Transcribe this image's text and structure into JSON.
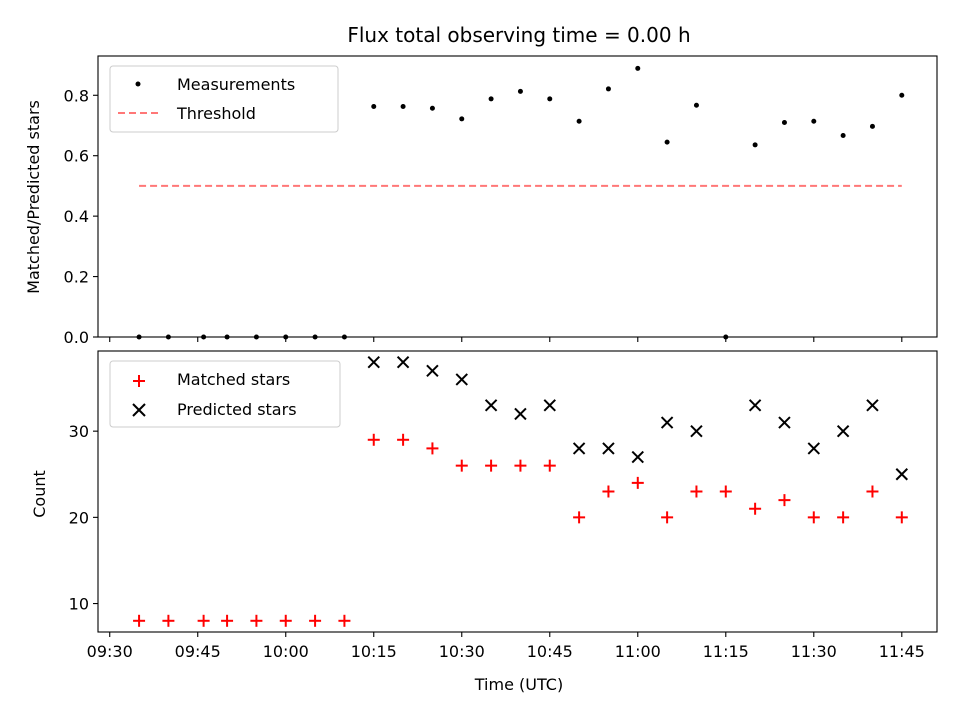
{
  "chart_data": [
    {
      "type": "scatter",
      "title": "Flux total observing time = 0.00 h",
      "xlabel": "",
      "ylabel": "Matched/Predicted stars",
      "ylim": [
        0,
        0.93
      ],
      "yticks": [
        "0.0",
        "0.2",
        "0.4",
        "0.6",
        "0.8"
      ],
      "ytick_values": [
        0,
        0.2,
        0.4,
        0.6,
        0.8
      ],
      "x_minutes_range": [
        568,
        711
      ],
      "series": [
        {
          "name": "Measurements",
          "marker": "dot",
          "color": "#000000",
          "x_minutes": [
            575,
            580,
            586,
            590,
            595,
            600,
            605,
            610,
            615,
            620,
            625,
            630,
            635,
            640,
            645,
            650,
            655,
            660,
            665,
            670,
            675,
            680,
            685,
            690,
            695,
            700,
            705
          ],
          "values": [
            0,
            0,
            0,
            0,
            0,
            0,
            0,
            0,
            0.763,
            0.763,
            0.757,
            0.722,
            0.788,
            0.813,
            0.788,
            0.714,
            0.821,
            0.889,
            0.645,
            0.767,
            0.0,
            0.636,
            0.71,
            0.714,
            0.667,
            0.697,
            0.8
          ]
        },
        {
          "name": "Threshold",
          "marker": "dashed-line",
          "color": "#ff7777",
          "x_minutes": [
            575,
            705
          ],
          "values": [
            0.5,
            0.5
          ]
        }
      ],
      "legend": "top-left"
    },
    {
      "type": "scatter",
      "title": "",
      "xlabel": "Time (UTC)",
      "ylabel": "Count",
      "ylim": [
        6.7,
        39.3
      ],
      "yticks": [
        "10",
        "20",
        "30"
      ],
      "ytick_values": [
        10,
        20,
        30
      ],
      "x_minutes_range": [
        568,
        711
      ],
      "xticks": [
        "09:30",
        "09:45",
        "10:00",
        "10:15",
        "10:30",
        "10:45",
        "11:00",
        "11:15",
        "11:30",
        "11:45"
      ],
      "xtick_minutes": [
        570,
        585,
        600,
        615,
        630,
        645,
        660,
        675,
        690,
        705
      ],
      "series": [
        {
          "name": "Matched stars",
          "marker": "plus",
          "color": "#ff0000",
          "x_minutes": [
            575,
            580,
            586,
            590,
            595,
            600,
            605,
            610,
            615,
            620,
            625,
            630,
            635,
            640,
            645,
            650,
            655,
            660,
            665,
            670,
            675,
            680,
            685,
            690,
            695,
            700,
            705
          ],
          "values": [
            8,
            8,
            8,
            8,
            8,
            8,
            8,
            8,
            29,
            29,
            28,
            26,
            26,
            26,
            26,
            20,
            23,
            24,
            20,
            23,
            23,
            21,
            22,
            20,
            20,
            23,
            20
          ]
        },
        {
          "name": "Predicted stars",
          "marker": "x",
          "color": "#000000",
          "x_minutes": [
            615,
            620,
            625,
            630,
            635,
            640,
            645,
            650,
            655,
            660,
            665,
            670,
            680,
            685,
            690,
            695,
            700,
            705
          ],
          "values": [
            38,
            38,
            37,
            36,
            33,
            32,
            33,
            28,
            28,
            27,
            31,
            30,
            33,
            31,
            28,
            30,
            33,
            25
          ]
        }
      ],
      "legend": "top-left"
    }
  ]
}
